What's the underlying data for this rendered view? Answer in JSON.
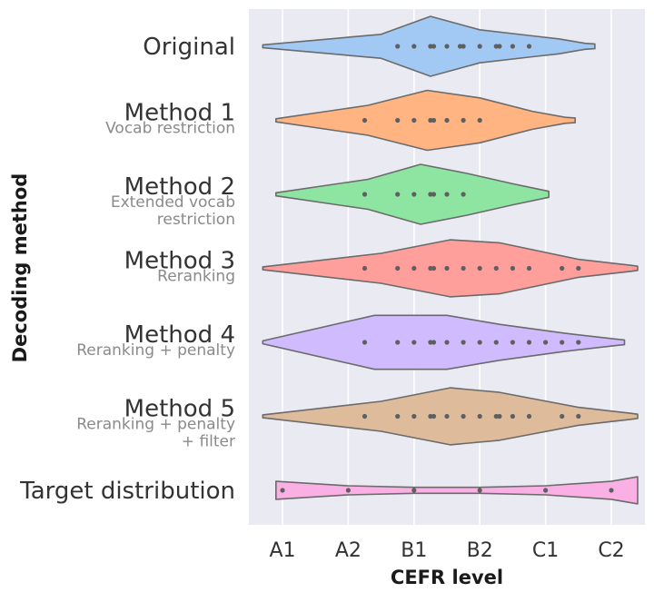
{
  "chart_data": {
    "type": "violin",
    "xlabel": "CEFR level",
    "ylabel": "Decoding method",
    "x_ticks": [
      "A1",
      "A2",
      "B1",
      "B2",
      "C1",
      "C2"
    ],
    "colors": {
      "background": "#eaeaf2",
      "grid": "#ffffff",
      "outline": "#6b6b6b",
      "point": "#5f5f5f"
    },
    "categories": [
      {
        "name": "Original",
        "subtitle": [],
        "color": "#a1c9f4",
        "outline": [
          [
            -0.3,
            0.05
          ],
          [
            1.5,
            0.4
          ],
          [
            2.25,
            1.0
          ],
          [
            3.0,
            0.55
          ],
          [
            3.8,
            0.35
          ],
          [
            4.2,
            0.25
          ],
          [
            4.6,
            0.1
          ],
          [
            4.75,
            0.08
          ]
        ],
        "points": [
          1.75,
          2.0,
          2.25,
          2.3,
          2.5,
          2.7,
          2.75,
          3.0,
          3.25,
          3.3,
          3.5,
          3.75
        ]
      },
      {
        "name": "Method 1",
        "subtitle": [
          "Vocab restriction"
        ],
        "color": "#ffb482",
        "outline": [
          [
            -0.1,
            0.05
          ],
          [
            1.3,
            0.5
          ],
          [
            2.2,
            1.0
          ],
          [
            3.0,
            0.75
          ],
          [
            3.8,
            0.3
          ],
          [
            4.3,
            0.1
          ],
          [
            4.45,
            0.08
          ]
        ],
        "points": [
          1.25,
          1.75,
          2.0,
          2.25,
          2.3,
          2.5,
          2.75,
          3.0
        ]
      },
      {
        "name": "Method 2",
        "subtitle": [
          "Extended vocab",
          "restriction"
        ],
        "color": "#8de5a1",
        "outline": [
          [
            -0.1,
            0.05
          ],
          [
            1.3,
            0.5
          ],
          [
            2.1,
            1.0
          ],
          [
            2.8,
            0.7
          ],
          [
            3.5,
            0.35
          ],
          [
            4.05,
            0.1
          ]
        ],
        "points": [
          1.25,
          1.75,
          2.0,
          2.25,
          2.3,
          2.5,
          2.75
        ]
      },
      {
        "name": "Method 3",
        "subtitle": [
          "Reranking"
        ],
        "color": "#ff9f9b",
        "outline": [
          [
            -0.3,
            0.05
          ],
          [
            1.5,
            0.5
          ],
          [
            2.55,
            0.95
          ],
          [
            3.3,
            0.85
          ],
          [
            4.5,
            0.3
          ],
          [
            5.1,
            0.15
          ],
          [
            5.3,
            0.1
          ],
          [
            5.4,
            0.07
          ]
        ],
        "points": [
          1.25,
          1.75,
          2.0,
          2.25,
          2.3,
          2.5,
          2.75,
          3.0,
          3.25,
          3.5,
          3.75,
          4.25,
          4.5
        ]
      },
      {
        "name": "Method 4",
        "subtitle": [
          "Reranking + penalty"
        ],
        "color": "#d0bbff",
        "outline": [
          [
            -0.3,
            0.05
          ],
          [
            1.4,
            0.9
          ],
          [
            2.5,
            0.9
          ],
          [
            3.3,
            0.6
          ],
          [
            4.3,
            0.3
          ],
          [
            4.9,
            0.15
          ],
          [
            5.1,
            0.1
          ],
          [
            5.2,
            0.08
          ]
        ],
        "points": [
          1.25,
          1.75,
          2.0,
          2.25,
          2.3,
          2.5,
          2.75,
          3.0,
          3.25,
          3.5,
          3.75,
          4.0,
          4.25,
          4.5
        ]
      },
      {
        "name": "Method 5",
        "subtitle": [
          "Reranking + penalty",
          "+ filter"
        ],
        "color": "#debb9b",
        "outline": [
          [
            -0.3,
            0.05
          ],
          [
            1.5,
            0.5
          ],
          [
            2.55,
            0.95
          ],
          [
            3.3,
            0.8
          ],
          [
            4.5,
            0.3
          ],
          [
            5.1,
            0.15
          ],
          [
            5.3,
            0.1
          ],
          [
            5.4,
            0.07
          ]
        ],
        "points": [
          1.25,
          1.75,
          2.0,
          2.25,
          2.3,
          2.5,
          2.75,
          3.0,
          3.25,
          3.3,
          3.5,
          3.75,
          4.25,
          4.5
        ]
      },
      {
        "name": "Target distribution",
        "subtitle": [],
        "color": "#fab0e4",
        "outline": [
          [
            -0.1,
            0.3
          ],
          [
            1.0,
            0.15
          ],
          [
            2.0,
            0.1
          ],
          [
            3.0,
            0.1
          ],
          [
            4.0,
            0.15
          ],
          [
            5.0,
            0.3
          ],
          [
            5.4,
            0.45
          ]
        ],
        "points": [
          0,
          1,
          2,
          3,
          4,
          5
        ]
      }
    ]
  }
}
